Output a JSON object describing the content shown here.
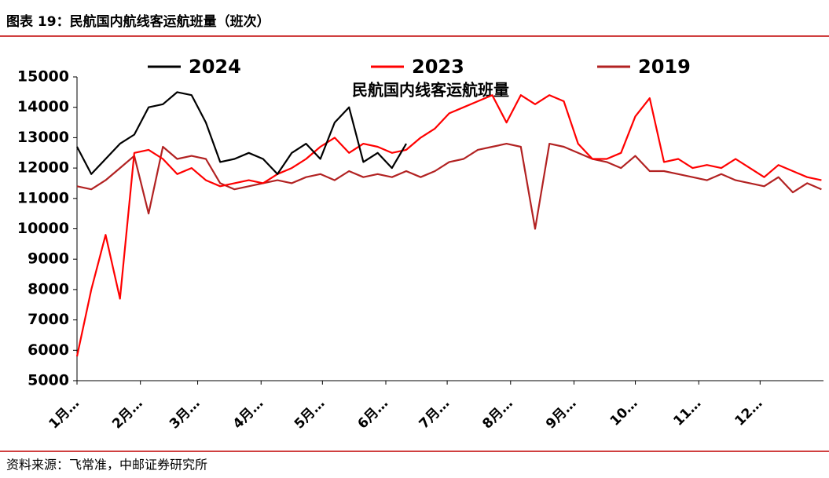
{
  "figure_title": "图表 19：民航国内航线客运航班量（班次）",
  "source": "资料来源：飞常准，中邮证券研究所",
  "chart_data": {
    "type": "line",
    "title": "民航国内线客运航班量",
    "legend": "top",
    "grid": false,
    "x": [
      1,
      8,
      15,
      22,
      29,
      36,
      43,
      50,
      57,
      64,
      71,
      78,
      85,
      92,
      99,
      106,
      113,
      120,
      127,
      134,
      141,
      148,
      155,
      162,
      169,
      176,
      183,
      190,
      197,
      204,
      211,
      218,
      225,
      232,
      239,
      246,
      253,
      260,
      267,
      274,
      281,
      288,
      295,
      302,
      309,
      316,
      323,
      330,
      337,
      344,
      351,
      358,
      365
    ],
    "xlim": [
      1,
      366
    ],
    "xticks": [
      {
        "value": 1,
        "label": "1月…"
      },
      {
        "value": 32,
        "label": "2月…"
      },
      {
        "value": 60,
        "label": "3月…"
      },
      {
        "value": 91,
        "label": "4月…"
      },
      {
        "value": 121,
        "label": "5月…"
      },
      {
        "value": 152,
        "label": "6月…"
      },
      {
        "value": 182,
        "label": "7月…"
      },
      {
        "value": 213,
        "label": "8月…"
      },
      {
        "value": 244,
        "label": "9月…"
      },
      {
        "value": 274,
        "label": "10…"
      },
      {
        "value": 305,
        "label": "11…"
      },
      {
        "value": 335,
        "label": "12…"
      }
    ],
    "ylim": [
      5000,
      15000
    ],
    "yticks": [
      5000,
      6000,
      7000,
      8000,
      9000,
      10000,
      11000,
      12000,
      13000,
      14000,
      15000
    ],
    "series": [
      {
        "name": "2024",
        "color": "#000000",
        "values": [
          12700,
          11800,
          12300,
          12800,
          13100,
          14000,
          14100,
          14500,
          14400,
          13500,
          12200,
          12300,
          12500,
          12300,
          11800,
          12500,
          12800,
          12300,
          13500,
          14000,
          12200,
          12500,
          12000,
          12800,
          null,
          null,
          null,
          null,
          null,
          null,
          null,
          null,
          null,
          null,
          null,
          null,
          null,
          null,
          null,
          null,
          null,
          null,
          null,
          null,
          null,
          null,
          null,
          null,
          null,
          null,
          null,
          null,
          null
        ]
      },
      {
        "name": "2023",
        "color": "#ff0000",
        "values": [
          5800,
          8000,
          9800,
          7700,
          12500,
          12600,
          12300,
          11800,
          12000,
          11600,
          11400,
          11500,
          11600,
          11500,
          11800,
          12000,
          12300,
          12700,
          13000,
          12500,
          12800,
          12700,
          12500,
          12600,
          13000,
          13300,
          13800,
          14000,
          14200,
          14400,
          13500,
          14400,
          14100,
          14400,
          14200,
          12800,
          12300,
          12300,
          12500,
          13700,
          14300,
          12200,
          12300,
          12000,
          12100,
          12000,
          12300,
          12000,
          11700,
          12100,
          11900,
          11700,
          11600
        ]
      },
      {
        "name": "2019",
        "color": "#b22222",
        "values": [
          11400,
          11300,
          11600,
          12000,
          12400,
          10500,
          12700,
          12300,
          12400,
          12300,
          11500,
          11300,
          11400,
          11500,
          11600,
          11500,
          11700,
          11800,
          11600,
          11900,
          11700,
          11800,
          11700,
          11900,
          11700,
          11900,
          12200,
          12300,
          12600,
          12700,
          12800,
          12700,
          10000,
          12800,
          12700,
          12500,
          12300,
          12200,
          12000,
          12400,
          11900,
          11900,
          11800,
          11700,
          11600,
          11800,
          11600,
          11500,
          11400,
          11700,
          11200,
          11500,
          11300
        ]
      }
    ]
  }
}
